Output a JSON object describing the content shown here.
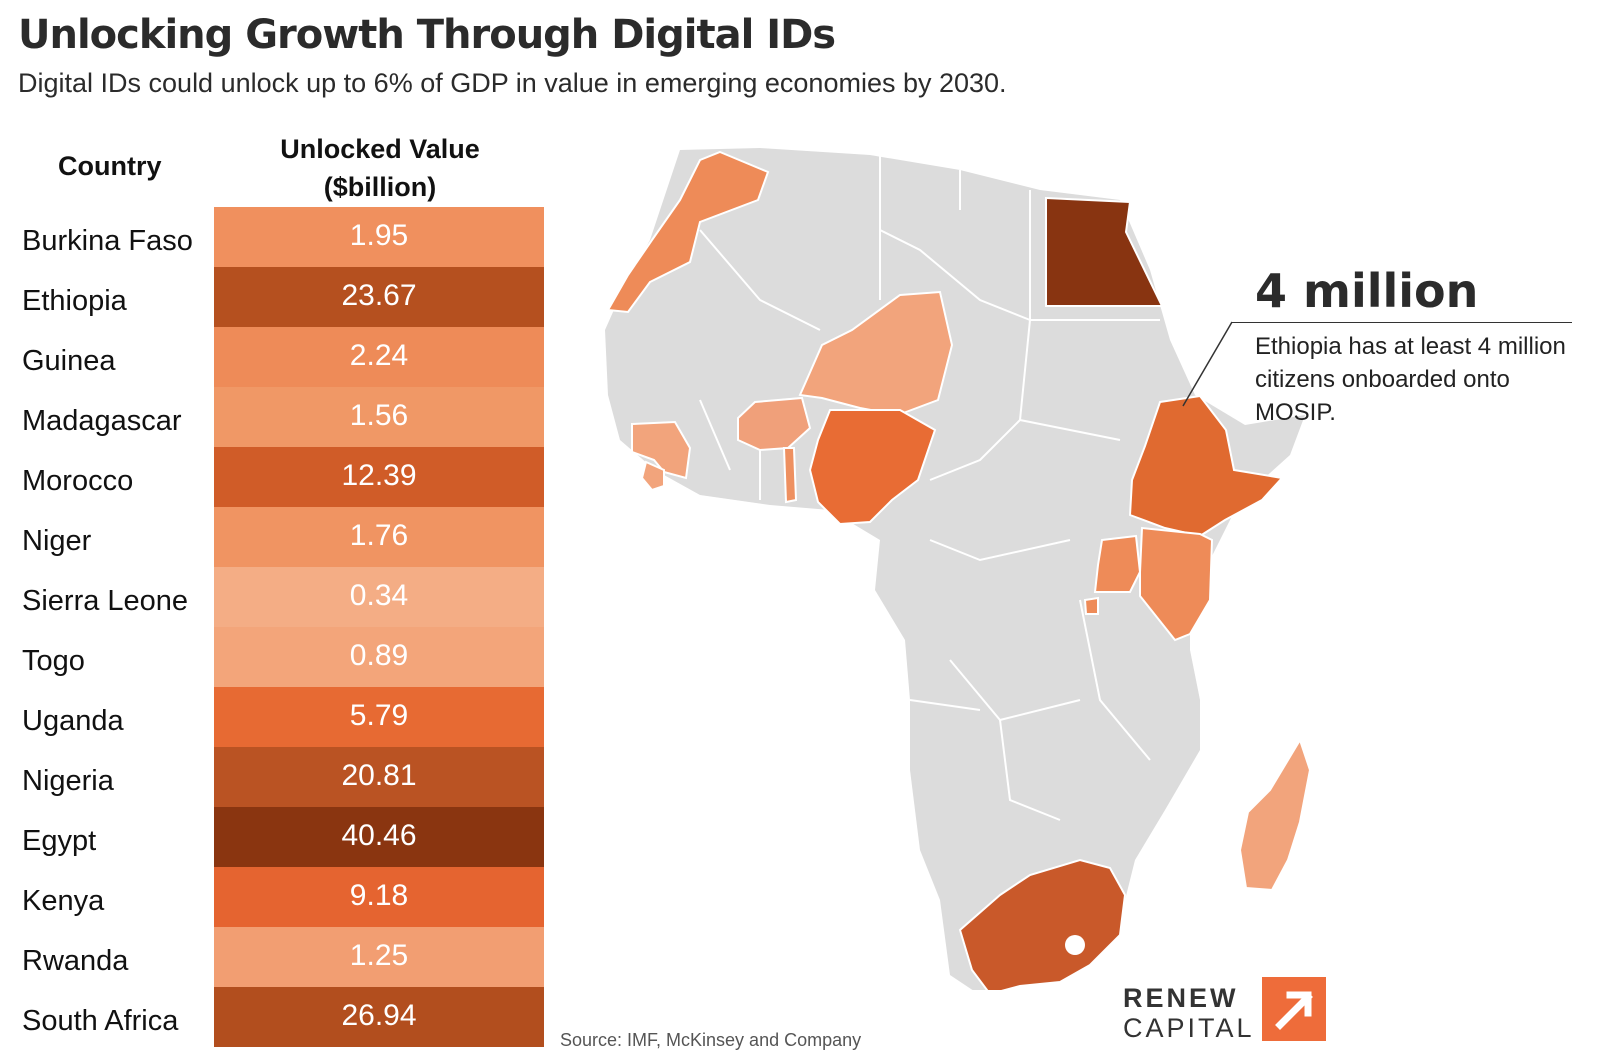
{
  "header": {
    "title": "Unlocking Growth Through Digital IDs",
    "subtitle": "Digital IDs could unlock up to 6% of GDP in value in emerging economies by 2030."
  },
  "table": {
    "country_header": "Country",
    "value_header_line1": "Unlocked Value",
    "value_header_line2": "($billion)",
    "rows": [
      {
        "country": "Burkina Faso",
        "value": "1.95",
        "color": "#F0905E"
      },
      {
        "country": "Ethiopia",
        "value": "23.67",
        "color": "#B5501F"
      },
      {
        "country": "Guinea",
        "value": "2.24",
        "color": "#EE8B58"
      },
      {
        "country": "Madagascar",
        "value": "1.56",
        "color": "#F09866"
      },
      {
        "country": "Morocco",
        "value": "12.39",
        "color": "#D05C28"
      },
      {
        "country": "Niger",
        "value": "1.76",
        "color": "#F09462"
      },
      {
        "country": "Sierra Leone",
        "value": "0.34",
        "color": "#F4AD85"
      },
      {
        "country": "Togo",
        "value": "0.89",
        "color": "#F3A57A"
      },
      {
        "country": "Uganda",
        "value": "5.79",
        "color": "#E76A33"
      },
      {
        "country": "Nigeria",
        "value": "20.81",
        "color": "#BA5323"
      },
      {
        "country": "Egypt",
        "value": "40.46",
        "color": "#8A3510"
      },
      {
        "country": "Kenya",
        "value": "9.18",
        "color": "#E56430"
      },
      {
        "country": "Rwanda",
        "value": "1.25",
        "color": "#F29E72"
      },
      {
        "country": "South Africa",
        "value": "26.94",
        "color": "#B24E1E"
      }
    ]
  },
  "map": {
    "base_color": "#DCDCDC",
    "border_color": "#FFFFFF",
    "highlight_colors": {
      "Morocco": "#EE8B58",
      "Egypt": "#883411",
      "Niger": "#F2A47C",
      "Burkina Faso": "#F0A07A",
      "Guinea": "#F2A47C",
      "Sierra Leone": "#F2A47C",
      "Togo": "#EE9060",
      "Nigeria": "#E86C34",
      "Ethiopia": "#E06A30",
      "Uganda": "#EE8B58",
      "Kenya": "#EE8B58",
      "Rwanda": "#EE8B58",
      "Madagascar": "#F2A47C",
      "South Africa": "#C9592A"
    }
  },
  "callout": {
    "number": "4 million",
    "text": "Ethiopia has at least 4 million citizens onboarded onto MOSIP."
  },
  "source": "Source: IMF, McKinsey and Company",
  "logo": {
    "line1": "RENEW",
    "line2": "CAPITAL",
    "mark_color": "#EE6C3A"
  }
}
